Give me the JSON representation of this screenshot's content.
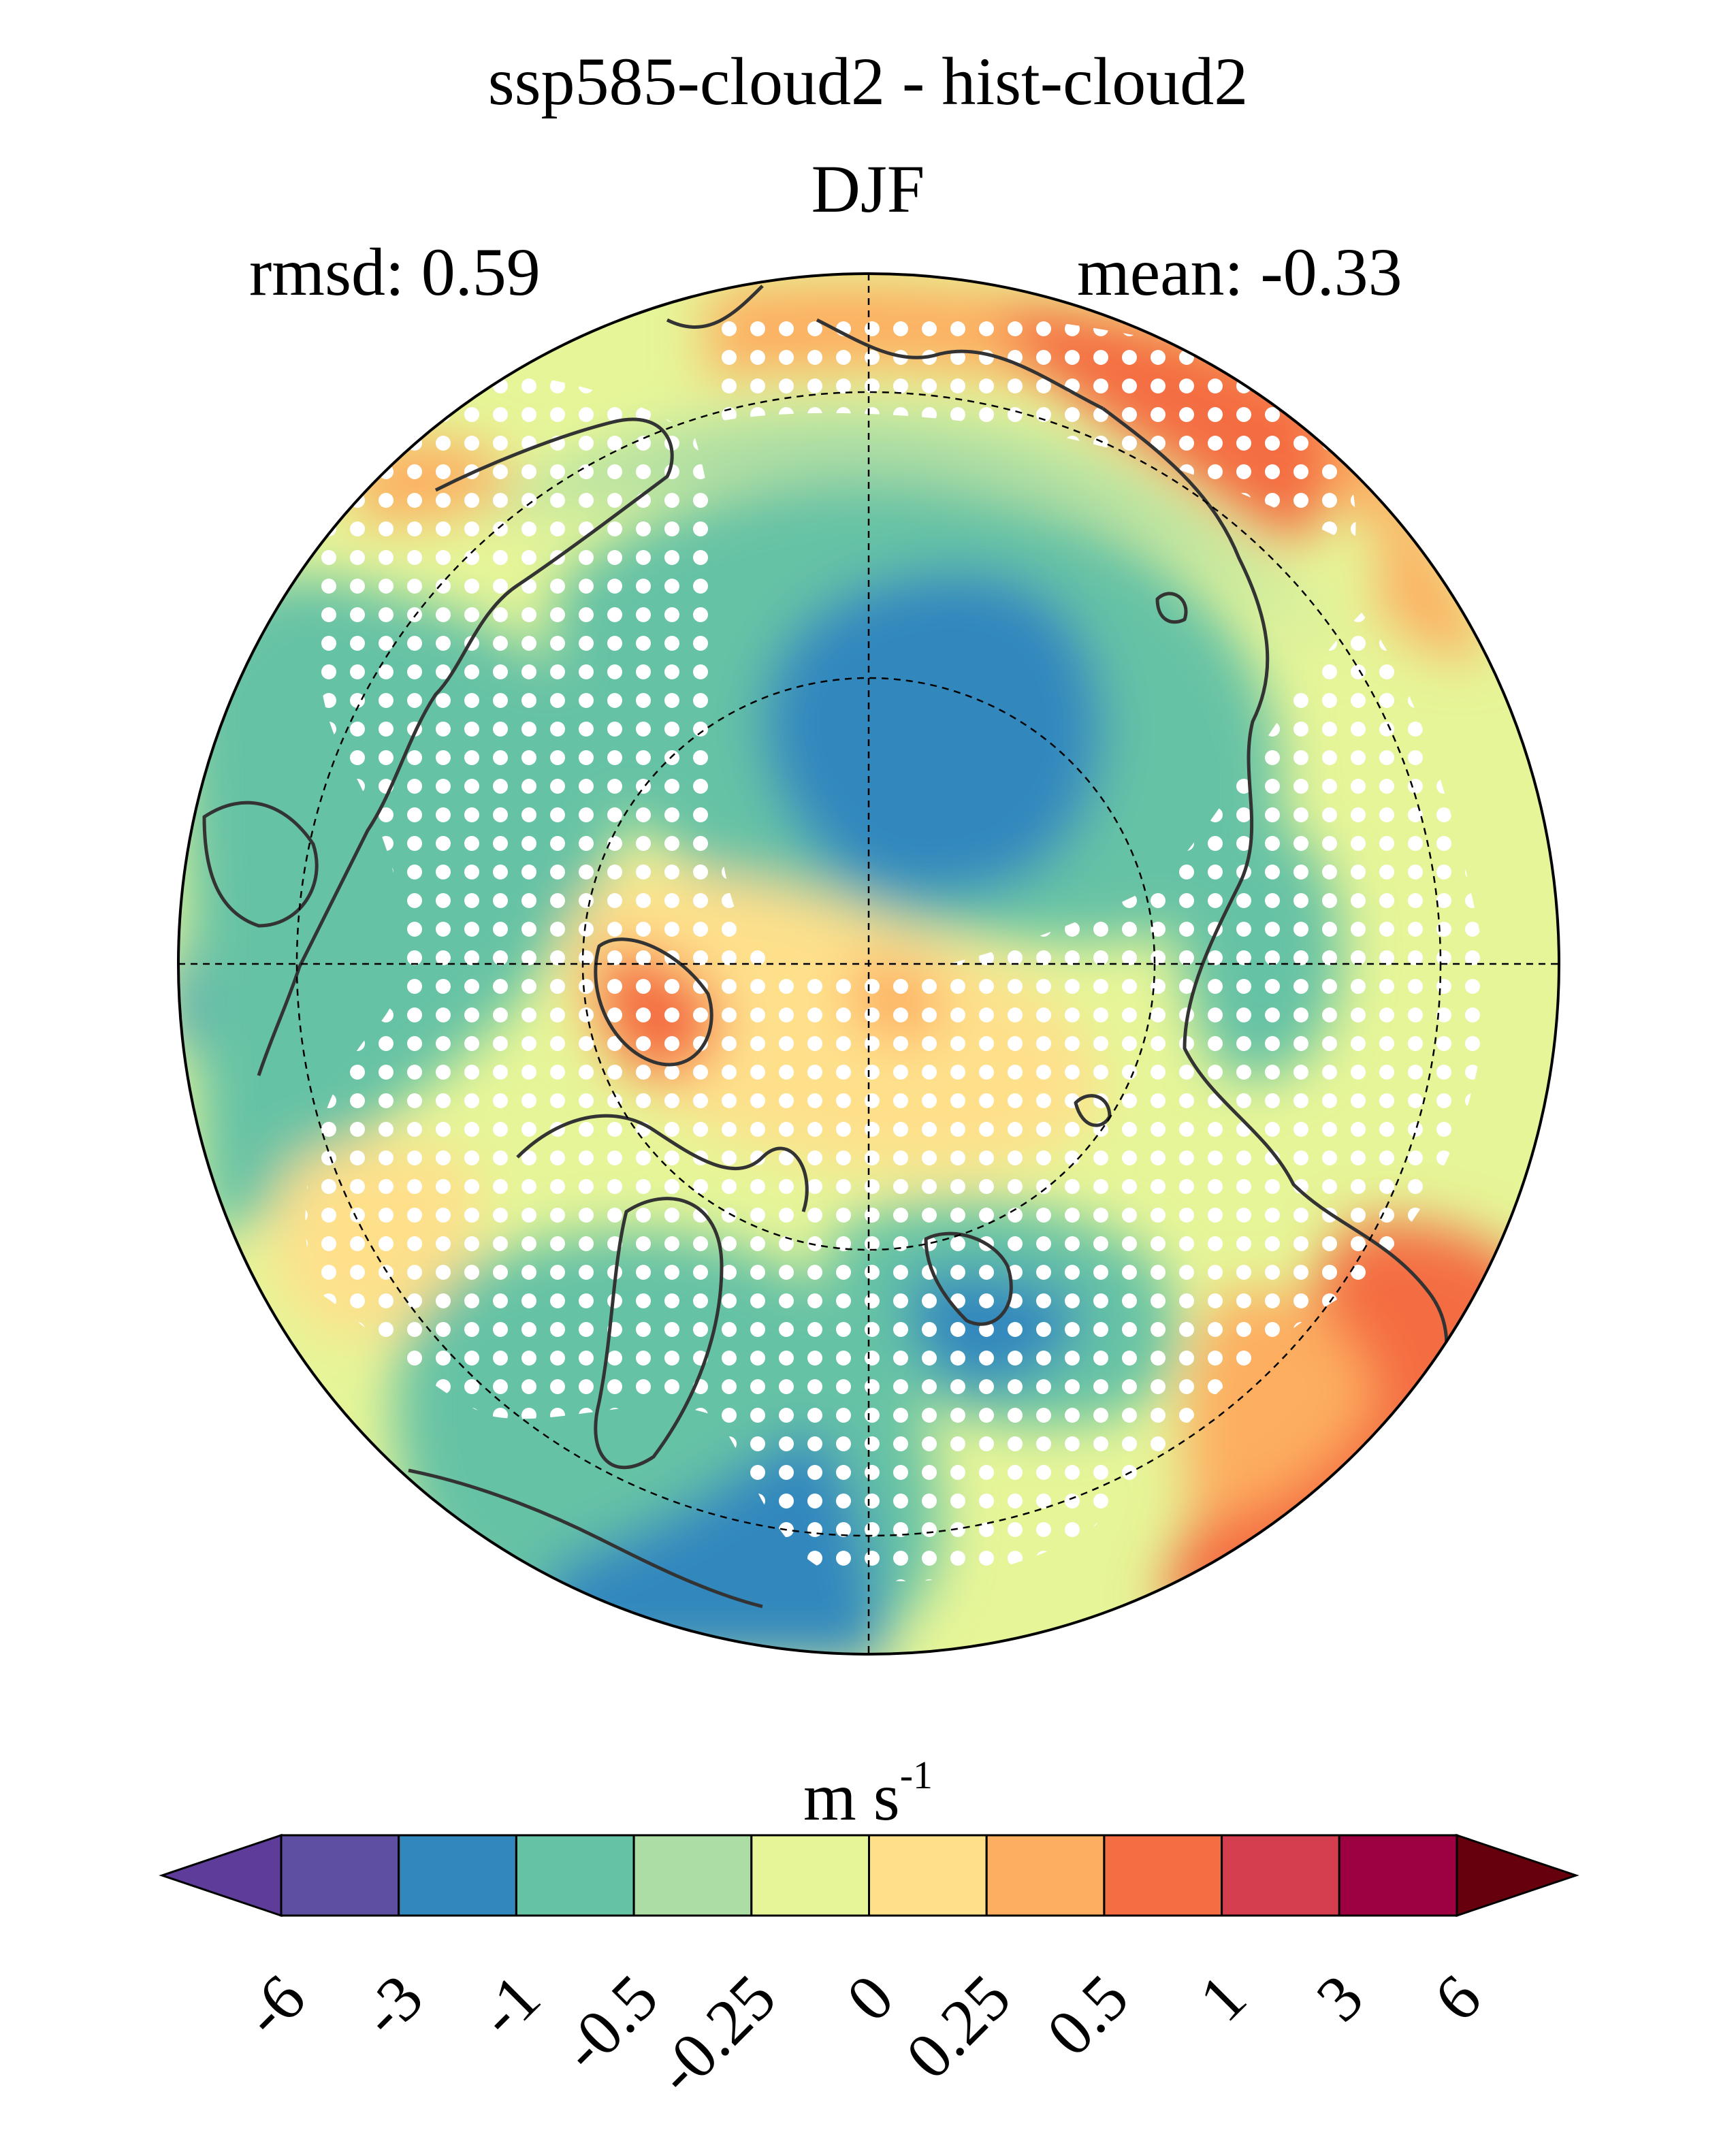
{
  "title": "ssp585-cloud2 - hist-cloud2",
  "subtitle": "DJF",
  "stats": {
    "rmsd_label": "rmsd: 0.59",
    "mean_label": "mean: -0.33"
  },
  "colorbar": {
    "unit_base": "m s",
    "unit_exp": "-1",
    "ticks": [
      "-6",
      "-3",
      "-1",
      "-0.5",
      "-0.25",
      "0",
      "0.25",
      "0.5",
      "1",
      "3",
      "6"
    ],
    "colors": [
      "#5e4fa2",
      "#3288bd",
      "#66c2a5",
      "#abdda4",
      "#e6f598",
      "#fee08b",
      "#fdae61",
      "#f46d43",
      "#d53e4f",
      "#9e0142"
    ],
    "under_color": "#5e3c99",
    "over_color": "#67000d"
  },
  "map": {
    "projection": "north-polar-stereographic",
    "stipple_color": "#ffffff",
    "coastline_color": "#333333"
  }
}
